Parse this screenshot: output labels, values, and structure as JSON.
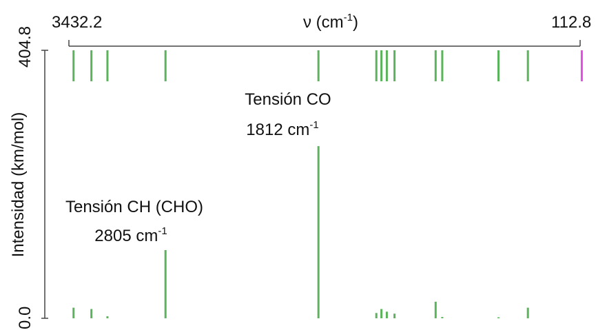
{
  "chart_data": {
    "type": "bar",
    "title": "",
    "xlabel": "ν (cm",
    "xlabel_sup": "-1",
    "xlabel_close": ")",
    "ylabel": "Intensidad (km/mol)",
    "xlim": [
      3432.2,
      112.8
    ],
    "ylim": [
      0.0,
      404.8
    ],
    "x_tick_labels": [
      "3432.2",
      "112.8"
    ],
    "y_tick_labels": [
      "0.0",
      "404.8"
    ],
    "grid": false,
    "series": [
      {
        "x": [
          3402,
          3286,
          3182,
          2805,
          1812,
          1436,
          1403,
          1368,
          1318,
          1051,
          1008,
          643,
          452,
          102.0
        ],
        "values": [
          16,
          14,
          3,
          103,
          260,
          8,
          14,
          10,
          7,
          25,
          2,
          1.5,
          16,
          0
        ],
        "marker_color": [
          "#5bb35b",
          "#5bb35b",
          "#5bb35b",
          "#5bb35b",
          "#5bb35b",
          "#5bb35b",
          "#5bb35b",
          "#5bb35b",
          "#5bb35b",
          "#5bb35b",
          "#5bb35b",
          "#5bb35b",
          "#5bb35b",
          "#e64ce6"
        ]
      }
    ],
    "annotations": [
      {
        "line1": "Tensión CO",
        "line2": "1812 cm",
        "sup": "-1"
      },
      {
        "line1": "Tensión CH (CHO)",
        "line2": "2805 cm",
        "sup": "-1"
      }
    ],
    "colors": {
      "bar": "#5bb35b",
      "axis": "#444444",
      "highlight": "#e64ce6"
    }
  }
}
